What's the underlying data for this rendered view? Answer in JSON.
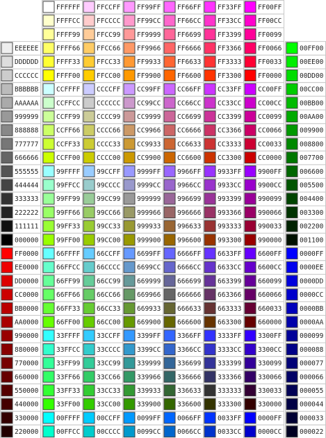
{
  "columns": [
    [
      null,
      null,
      null,
      "EEEEEE",
      "DDDDDD",
      "CCCCCC",
      "BBBBBB",
      "AAAAAA",
      "999999",
      "888888",
      "777777",
      "666666",
      "555555",
      "444444",
      "333333",
      "222222",
      "111111",
      "000000",
      "FF0000",
      "EE0000",
      "DD0000",
      "CC0000",
      "BB0000",
      "AA0000",
      "990000",
      "880000",
      "770000",
      "660000",
      "550000",
      "440000",
      "330000",
      "220000"
    ],
    [
      "FFFFFF",
      "FFFFCC",
      "FFFF99",
      "FFFF66",
      "FFFF33",
      "FFFF00",
      "CCFFFF",
      "CCFFCC",
      "CCFF99",
      "CCFF66",
      "CCFF33",
      "CCFF00",
      "99FFFF",
      "99FFCC",
      "99FF99",
      "99FF66",
      "99FF33",
      "99FF00",
      "66FFFF",
      "66FFCC",
      "66FF99",
      "66FF66",
      "66FF33",
      "66FF00",
      "33FFFF",
      "33FFCC",
      "33FF99",
      "33FF66",
      "33FF33",
      "33FF00",
      "00FFFF",
      "00FFCC"
    ],
    [
      "FFCCFF",
      "FFCCCC",
      "FFCC99",
      "FFCC66",
      "FFCC33",
      "FFCC00",
      "CCCCFF",
      "CCCCCC",
      "CCCC99",
      "CCCC66",
      "CCCC33",
      "CCCC00",
      "99CCFF",
      "99CCCC",
      "99CC99",
      "99CC66",
      "99CC33",
      "99CC00",
      "66CCFF",
      "66CCCC",
      "66CC99",
      "66CC66",
      "66CC33",
      "66CC00",
      "33CCFF",
      "33CCCC",
      "33CC99",
      "33CC66",
      "33CC33",
      "33CC00",
      "00CCFF",
      "00CCCC"
    ],
    [
      "FF99FF",
      "FF99CC",
      "FF9999",
      "FF9966",
      "FF9933",
      "FF9900",
      "CC99FF",
      "CC99CC",
      "CC9999",
      "CC9966",
      "CC9933",
      "CC9900",
      "9999FF",
      "9999CC",
      "999999",
      "999966",
      "999933",
      "999900",
      "6699FF",
      "6699CC",
      "669999",
      "669966",
      "669933",
      "669900",
      "3399FF",
      "3399CC",
      "339999",
      "339966",
      "339933",
      "339900",
      "0099FF",
      "0099CC"
    ],
    [
      "FF66FF",
      "FF66CC",
      "FF6699",
      "FF6666",
      "FF6633",
      "FF6600",
      "CC66FF",
      "CC66CC",
      "CC6699",
      "CC6666",
      "CC6633",
      "CC6600",
      "9966FF",
      "9966CC",
      "996699",
      "996666",
      "996633",
      "996600",
      "6666FF",
      "6666CC",
      "666699",
      "666666",
      "666633",
      "666600",
      "3366FF",
      "3366CC",
      "336699",
      "336666",
      "336633",
      "336600",
      "0066FF",
      "0066CC"
    ],
    [
      "FF33FF",
      "FF33CC",
      "FF3399",
      "FF3366",
      "FF3333",
      "FF3300",
      "CC33FF",
      "CC33CC",
      "CC3399",
      "CC3366",
      "CC3333",
      "CC3300",
      "9933FF",
      "9933CC",
      "993399",
      "993366",
      "993333",
      "993300",
      "6633FF",
      "6633CC",
      "663399",
      "663366",
      "663333",
      "663300",
      "3333FF",
      "3333CC",
      "333399",
      "333366",
      "333333",
      "333300",
      "0033FF",
      "0033CC"
    ],
    [
      "FF00FF",
      "FF00CC",
      "FF0099",
      "FF0066",
      "FF0033",
      "FF0000",
      "CC00FF",
      "CC00CC",
      "CC0099",
      "CC0066",
      "CC0033",
      "CC0000",
      "9900FF",
      "9900CC",
      "990099",
      "990066",
      "990033",
      "990000",
      "6600FF",
      "6600CC",
      "660099",
      "660066",
      "660033",
      "660000",
      "3300FF",
      "3300CC",
      "330099",
      "330066",
      "330033",
      "330000",
      "0000FF",
      "0000CC"
    ],
    [
      null,
      null,
      null,
      "00FF00",
      "00EE00",
      "00DD00",
      "00CC00",
      "00BB00",
      "00AA00",
      "009900",
      "008800",
      "007700",
      "006600",
      "005500",
      "004400",
      "003300",
      "002200",
      "001100",
      "0000FF",
      "0000EE",
      "0000DD",
      "0000CC",
      "0000BB",
      "0000AA",
      "000099",
      "000088",
      "000077",
      "000066",
      "000055",
      "000044",
      "000033",
      "000022"
    ]
  ]
}
